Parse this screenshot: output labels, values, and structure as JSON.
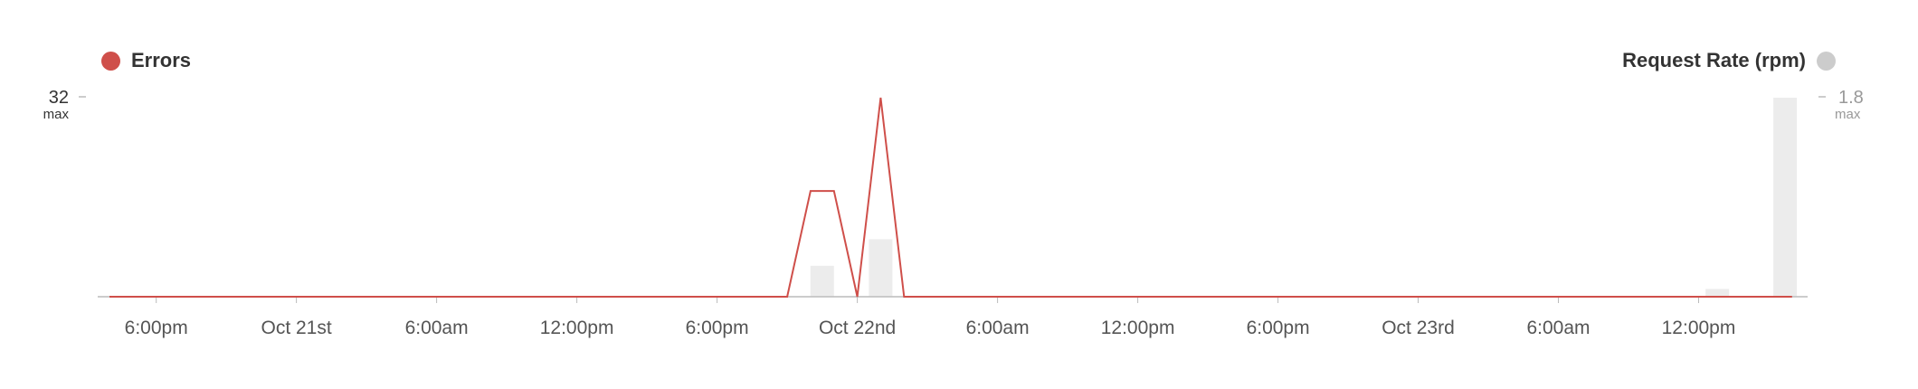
{
  "chart_data": {
    "type": "line",
    "left_series": {
      "name": "Errors",
      "color": "#cf4f4a",
      "max_label": "32",
      "max_sub": "max",
      "ylim": [
        0,
        32
      ]
    },
    "right_series": {
      "name": "Request Rate (rpm)",
      "color": "#cccccc",
      "bar_color": "#ececec",
      "max_label": "1.8",
      "max_sub": "max",
      "ylim": [
        0,
        1.8
      ]
    },
    "x_ticks": [
      "6:00pm",
      "Oct 21st",
      "6:00am",
      "12:00pm",
      "6:00pm",
      "Oct 22nd",
      "6:00am",
      "12:00pm",
      "6:00pm",
      "Oct 23rd",
      "6:00am",
      "12:00pm"
    ],
    "x_tick_hours": [
      18,
      24,
      30,
      36,
      42,
      48,
      54,
      60,
      66,
      72,
      78,
      84
    ],
    "x_range_hours": [
      16,
      88.2
    ],
    "errors": [
      {
        "x": 16,
        "y": 0
      },
      {
        "x": 45,
        "y": 0
      },
      {
        "x": 46,
        "y": 17
      },
      {
        "x": 47,
        "y": 17
      },
      {
        "x": 48,
        "y": 0
      },
      {
        "x": 49,
        "y": 32
      },
      {
        "x": 50,
        "y": 0
      },
      {
        "x": 88,
        "y": 0
      }
    ],
    "request_rate": [
      {
        "x": 46.5,
        "y": 0.28
      },
      {
        "x": 49,
        "y": 0.52
      },
      {
        "x": 84.8,
        "y": 0.07
      },
      {
        "x": 87.7,
        "y": 1.8
      }
    ]
  }
}
